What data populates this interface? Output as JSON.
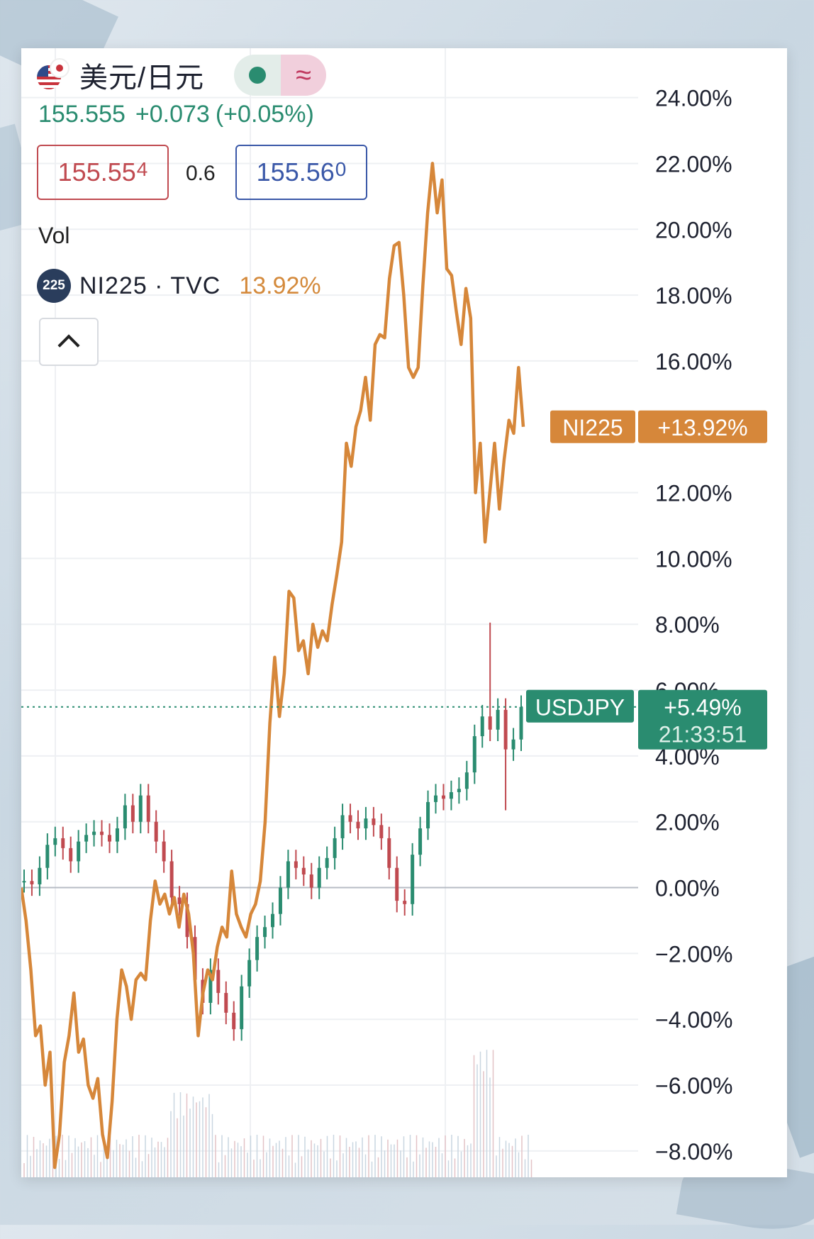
{
  "header": {
    "title": "美元/日元",
    "price": "155.555",
    "change": "+0.073",
    "change_pct": "(+0.05%)",
    "bid_main": "155.55",
    "bid_last": "4",
    "ask_main": "155.56",
    "ask_last": "0",
    "spread": "0.6",
    "vol_label": "Vol",
    "compare_badge": "225",
    "compare_symbol": "NI225 · TVC",
    "compare_value": "13.92%"
  },
  "colors": {
    "ni225": "#d6873a",
    "up": "#2a8c70",
    "down": "#c04a50",
    "grid": "#eef0f3",
    "axis_text": "#1e2230"
  },
  "chart_data": {
    "type": "line",
    "ylim": [
      -8.8,
      25.5
    ],
    "y_ticks": [
      "24.00%",
      "22.00%",
      "20.00%",
      "18.00%",
      "16.00%",
      "12.00%",
      "10.00%",
      "8.00%",
      "6.00%",
      "4.00%",
      "2.00%",
      "0.00%",
      "−2.00%",
      "−4.00%",
      "−6.00%",
      "−8.00%"
    ],
    "y_tick_values": [
      24,
      22,
      20,
      18,
      16,
      12,
      10,
      8,
      6,
      4,
      2,
      0,
      -2,
      -4,
      -6,
      -8
    ],
    "series": [
      {
        "name": "NI225",
        "color": "#d6873a",
        "values": [
          0,
          -1,
          -2.5,
          -4.5,
          -4.2,
          -6,
          -5,
          -8.5,
          -7.5,
          -5.3,
          -4.5,
          -3.2,
          -5,
          -4.6,
          -6,
          -6.4,
          -5.8,
          -7.5,
          -8.2,
          -6.5,
          -4,
          -2.5,
          -3,
          -4,
          -2.8,
          -2.6,
          -2.8,
          -1,
          0.2,
          -0.5,
          -0.2,
          -0.8,
          -0.3,
          -1.2,
          -0.2,
          -0.8,
          -2,
          -4.5,
          -3.2,
          -2.5,
          -2.8,
          -1.8,
          -1.2,
          -1.5,
          0.5,
          -0.8,
          -1.2,
          -1.5,
          -0.8,
          -0.5,
          0.2,
          2,
          5,
          7,
          5.2,
          6.5,
          9,
          8.8,
          7.2,
          7.5,
          6.5,
          8,
          7.3,
          7.8,
          7.5,
          8.6,
          9.5,
          10.5,
          13.5,
          12.8,
          14,
          14.5,
          15.5,
          14.2,
          16.5,
          16.8,
          16.7,
          18.5,
          19.5,
          19.6,
          18,
          15.8,
          15.5,
          15.8,
          18.3,
          20.5,
          22,
          20.5,
          21.5,
          18.8,
          18.6,
          17.5,
          16.5,
          18.2,
          17.3,
          12,
          13.5,
          10.5,
          12,
          13.5,
          11.5,
          13,
          14.2,
          13.8,
          15.8,
          14
        ],
        "last_label": "+13.92%"
      },
      {
        "name": "USDJPY",
        "color": "#2a8c70",
        "values": [
          0.2,
          0.1,
          0.6,
          1.3,
          1.5,
          1.2,
          0.8,
          1.4,
          1.6,
          1.7,
          1.6,
          1.4,
          1.8,
          2.5,
          2,
          2.8,
          2,
          1.4,
          0.8,
          -0.3,
          -0.5,
          -1.5,
          -2.8,
          -3.5,
          -2.5,
          -3.2,
          -3.8,
          -4.3,
          -3,
          -2.2,
          -1.5,
          -1.2,
          -0.8,
          0,
          0.8,
          0.6,
          0.4,
          0,
          0.6,
          0.9,
          1.5,
          2.2,
          2,
          1.8,
          2.1,
          1.9,
          1.5,
          0.6,
          -0.4,
          -0.5,
          1,
          1.8,
          2.6,
          2.8,
          2.7,
          2.9,
          3,
          3.5,
          4.6,
          5.2,
          4.8,
          5.4,
          4.2,
          4.5,
          5.49
        ],
        "last_label": "+5.49%",
        "countdown": "21:33:51"
      }
    ],
    "baseline_value": 0,
    "current_line_value": 5.49
  }
}
